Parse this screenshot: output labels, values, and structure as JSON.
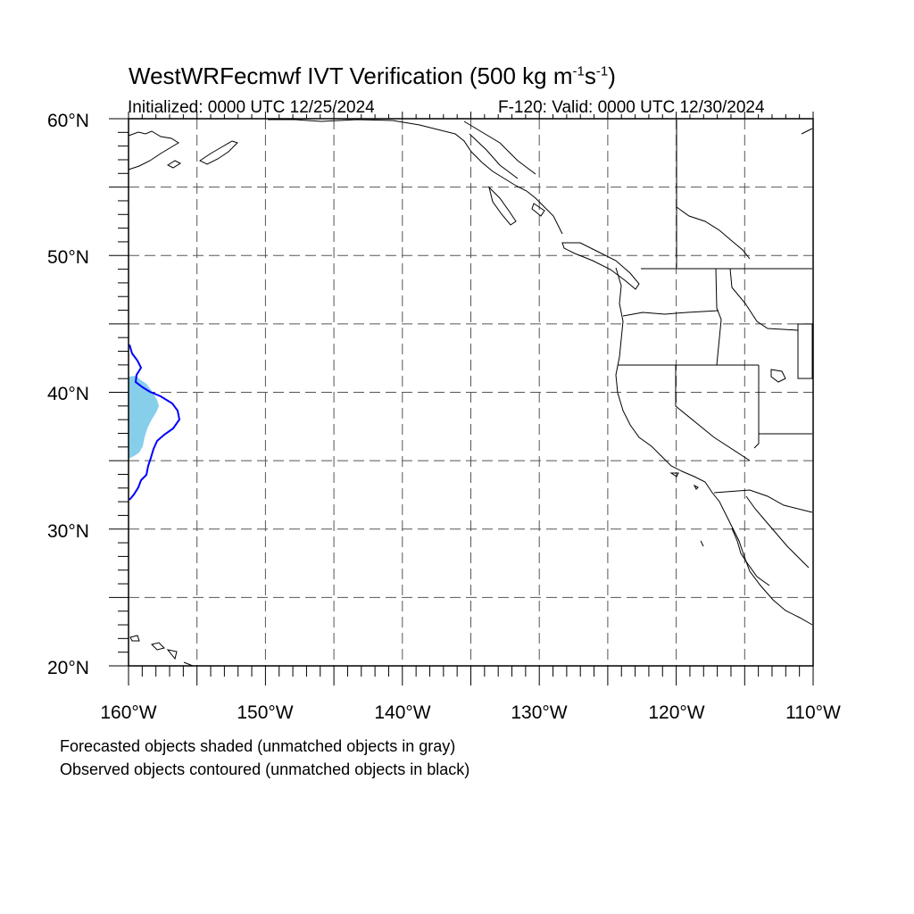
{
  "title": {
    "main": "WestWRFecmwf IVT Verification (500 kg m",
    "exp1": "-1",
    "mid": "s",
    "exp2": "-1",
    "end": ")"
  },
  "initialized": "Initialized: 0000 UTC 12/25/2024",
  "valid": "F-120: Valid: 0000 UTC 12/30/2024",
  "lat_labels": [
    "60°N",
    "50°N",
    "40°N",
    "30°N",
    "20°N"
  ],
  "lon_labels": [
    "160°W",
    "150°W",
    "140°W",
    "130°W",
    "120°W",
    "110°W"
  ],
  "map": {
    "lon_range": [
      -160,
      -110
    ],
    "lat_range": [
      20,
      60
    ],
    "grid_interval_deg": 5,
    "grid_style": "dashed",
    "forecast_color": "#87ceeb",
    "observed_color": "#0000ff",
    "coastline_color": "#000000"
  },
  "notes": {
    "line1": "Forecasted objects shaded (unmatched objects in gray)",
    "line2": "Observed objects contoured (unmatched objects in black)"
  }
}
